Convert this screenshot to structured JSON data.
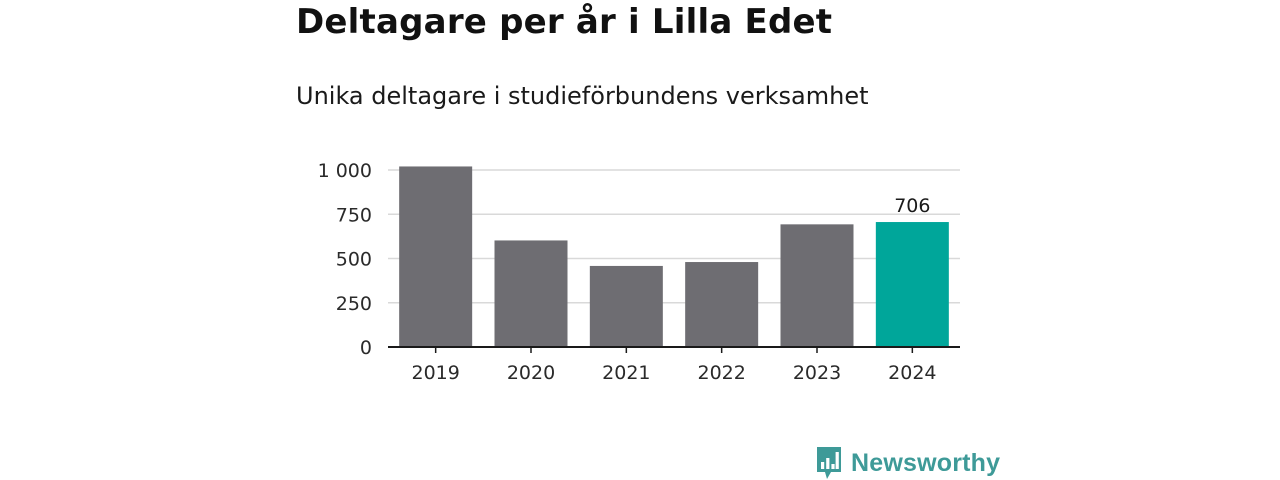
{
  "title": "Deltagare per år i Lilla Edet",
  "subtitle": "Unika deltagare i studieförbundens verksamhet",
  "brand": {
    "name": "Newsworthy",
    "logo_icon": "bar-chart-speech-bubble-icon",
    "color": "#3e9a98"
  },
  "chart_data": {
    "type": "bar",
    "categories": [
      "2019",
      "2020",
      "2021",
      "2022",
      "2023",
      "2024"
    ],
    "values": [
      1020,
      602,
      458,
      480,
      693,
      706
    ],
    "ylim": [
      0,
      1000
    ],
    "yticks": [
      0,
      250,
      500,
      750,
      1000
    ],
    "ytick_labels": [
      "0",
      "250",
      "500",
      "750",
      "1 000"
    ],
    "grid": true,
    "highlight_index": 5,
    "data_labels": [
      {
        "index": 5,
        "text": "706"
      }
    ],
    "colors": {
      "default": "#6e6d72",
      "highlight": "#00a69a",
      "grid": "#d9d9d9",
      "axis": "#1a1a1a"
    }
  }
}
